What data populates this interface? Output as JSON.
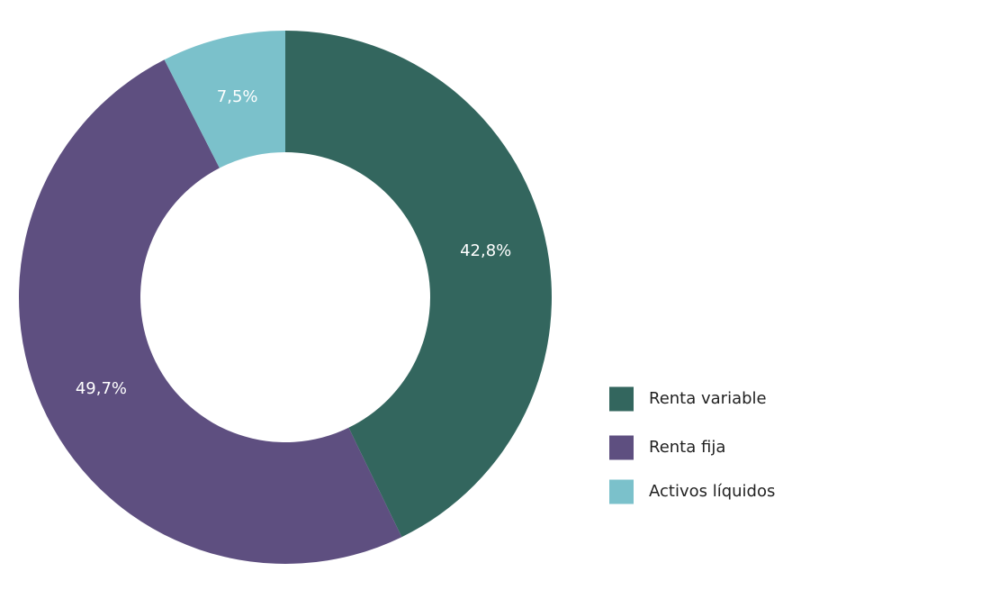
{
  "chart_data": {
    "type": "donut",
    "categories": [
      "Renta variable",
      "Renta fija",
      "Activos líquidos"
    ],
    "values": [
      42.8,
      49.7,
      7.5
    ],
    "value_labels": [
      "42,8%",
      "49,7%",
      "7,5%"
    ],
    "colors": [
      "#33665e",
      "#5e4f80",
      "#7bc1cb"
    ],
    "legend": "right"
  }
}
